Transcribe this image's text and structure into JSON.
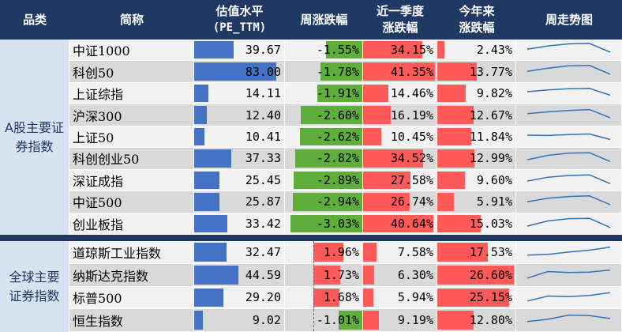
{
  "colors": {
    "header_bg": "#1f3864",
    "pe_bar": "#4472c4",
    "pos_bar": "#ff5a5a",
    "neg_bar": "#5fae3c",
    "spark_line": "#2e75b6"
  },
  "header": {
    "category": "品类",
    "name": "简称",
    "pe_line1": "估值水平",
    "pe_line2": "(PE_TTM)",
    "week": "周涨跌幅",
    "quarter_line1": "近一季度",
    "quarter_line2": "涨跌幅",
    "ytd_line1": "今年来",
    "ytd_line2": "涨跌幅",
    "trend": "周走势图"
  },
  "groups": [
    {
      "label": "A股主要证券指数",
      "rows": [
        {
          "name": "中证1000",
          "pe": "39.67",
          "week": "-1.55%",
          "quarter": "34.15%",
          "ytd": "2.43%",
          "trend": [
            0.55,
            0.78,
            0.92,
            0.95,
            0.35
          ]
        },
        {
          "name": "科创50",
          "pe": "83.00",
          "week": "-1.78%",
          "quarter": "41.35%",
          "ytd": "13.77%",
          "trend": [
            0.5,
            0.72,
            0.88,
            0.9,
            0.3
          ]
        },
        {
          "name": "上证综指",
          "pe": "14.11",
          "week": "-1.91%",
          "quarter": "14.46%",
          "ytd": "9.82%",
          "trend": [
            0.62,
            0.74,
            0.82,
            0.85,
            0.38
          ]
        },
        {
          "name": "沪深300",
          "pe": "12.40",
          "week": "-2.60%",
          "quarter": "16.19%",
          "ytd": "12.67%",
          "trend": [
            0.58,
            0.7,
            0.8,
            0.86,
            0.3
          ]
        },
        {
          "name": "上证50",
          "pe": "10.41",
          "week": "-2.62%",
          "quarter": "10.45%",
          "ytd": "11.84%",
          "trend": [
            0.62,
            0.6,
            0.66,
            0.7,
            0.32
          ]
        },
        {
          "name": "科创创业50",
          "pe": "37.33",
          "week": "-2.82%",
          "quarter": "34.52%",
          "ytd": "12.99%",
          "trend": [
            0.4,
            0.7,
            0.85,
            0.88,
            0.28
          ]
        },
        {
          "name": "深证成指",
          "pe": "25.45",
          "week": "-2.89%",
          "quarter": "27.58%",
          "ytd": "9.60%",
          "trend": [
            0.45,
            0.72,
            0.84,
            0.88,
            0.28
          ]
        },
        {
          "name": "中证500",
          "pe": "25.87",
          "week": "-2.94%",
          "quarter": "26.74%",
          "ytd": "5.91%",
          "trend": [
            0.5,
            0.74,
            0.86,
            0.9,
            0.3
          ]
        },
        {
          "name": "创业板指",
          "pe": "33.42",
          "week": "-3.03%",
          "quarter": "40.64%",
          "ytd": "15.03%",
          "trend": [
            0.35,
            0.7,
            0.86,
            0.88,
            0.25
          ]
        }
      ]
    },
    {
      "label": "全球主要证券指数",
      "rows": [
        {
          "name": "道琼斯工业指数",
          "pe": "32.47",
          "week": "1.96%",
          "quarter": "7.58%",
          "ytd": "17.53%",
          "trend": [
            0.3,
            0.35,
            0.5,
            0.62,
            0.82
          ]
        },
        {
          "name": "纳斯达克指数",
          "pe": "44.59",
          "week": "1.73%",
          "quarter": "6.30%",
          "ytd": "26.60%",
          "trend": [
            0.3,
            0.72,
            0.66,
            0.68,
            0.82
          ]
        },
        {
          "name": "标普500",
          "pe": "29.20",
          "week": "1.68%",
          "quarter": "5.94%",
          "ytd": "25.15%",
          "trend": [
            0.3,
            0.62,
            0.58,
            0.66,
            0.84
          ]
        },
        {
          "name": "恒生指数",
          "pe": "9.02",
          "week": "-1.01%",
          "quarter": "9.19%",
          "ytd": "12.80%",
          "trend": [
            0.4,
            0.55,
            0.82,
            0.78,
            0.6
          ]
        }
      ]
    }
  ]
}
